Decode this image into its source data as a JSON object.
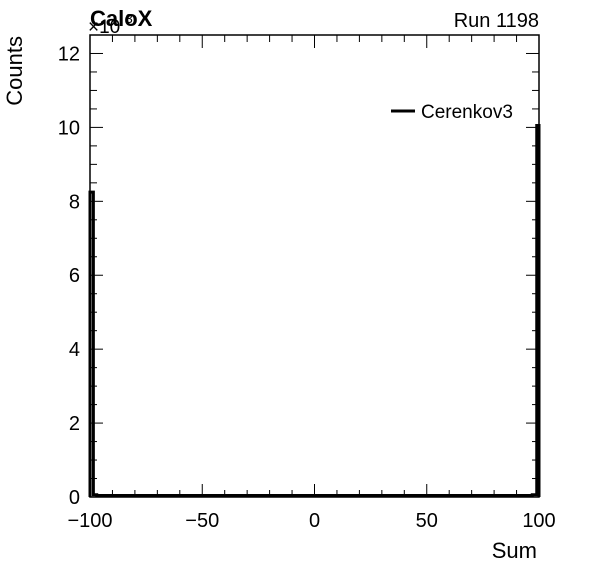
{
  "header": {
    "experiment": "CaloX",
    "run": "Run 1198"
  },
  "chart_data": {
    "type": "histogram",
    "xlabel": "Sum",
    "ylabel": "Counts",
    "y_multiplier": "×10",
    "y_multiplier_exp": "3",
    "xlim": [
      -100,
      100
    ],
    "ylim": [
      0,
      12.5
    ],
    "x_ticks": [
      -100,
      -50,
      0,
      50,
      100
    ],
    "x_tick_labels": [
      "−100",
      "−50",
      "0",
      "50",
      "100"
    ],
    "y_ticks": [
      0,
      2,
      4,
      6,
      8,
      10,
      12
    ],
    "y_tick_labels": [
      "0",
      "2",
      "4",
      "6",
      "8",
      "10",
      "12"
    ],
    "grid": false,
    "legend_position": "top-right",
    "line_color": "#000000",
    "series": [
      {
        "name": "Cerenkov3",
        "bins": [
          {
            "x_low": -100,
            "x_high": -98.5,
            "y": 8.25
          },
          {
            "x_low": -98.5,
            "x_high": -97,
            "y": 0.06
          },
          {
            "x_low": -97,
            "x_high": 97,
            "y": 0.04
          },
          {
            "x_low": 97,
            "x_high": 99,
            "y": 0.06
          },
          {
            "x_low": 99,
            "x_high": 100,
            "y": 10.05
          }
        ]
      }
    ]
  }
}
